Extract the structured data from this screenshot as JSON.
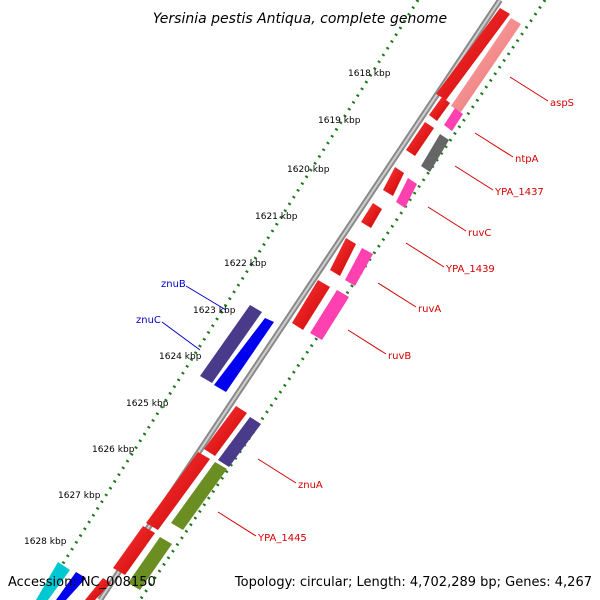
{
  "title": "Yersinia pestis Antiqua, complete genome",
  "accession": "Accession: NC_008150",
  "summary": "Topology: circular; Length: 4,702,289 bp; Genes: 4,267",
  "colors": {
    "backbone": "#888888",
    "tick": "#1a7a1a",
    "label_red": "#d40000",
    "label_blue": "#0000cc"
  },
  "ticks": [
    "1618 kbp",
    "1619 kbp",
    "1620 kbp",
    "1621 kbp",
    "1622 kbp",
    "1623 kbp",
    "1624 kbp",
    "1625 kbp",
    "1626 kbp",
    "1627 kbp",
    "1628 kbp"
  ],
  "labels_forward": [
    "aspS",
    "ntpA",
    "YPA_1437",
    "ruvC",
    "YPA_1439",
    "ruvA",
    "ruvB",
    "znuA",
    "YPA_1445"
  ],
  "labels_reverse": [
    "znuB",
    "znuC"
  ]
}
